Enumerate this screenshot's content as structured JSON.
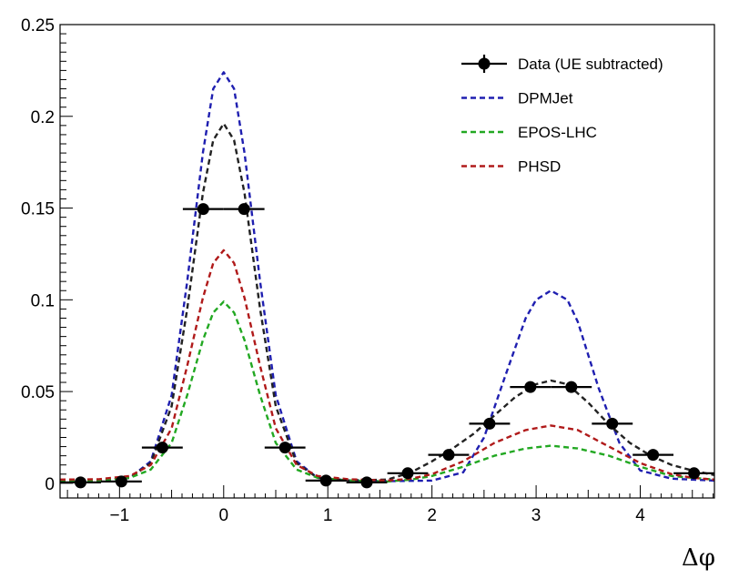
{
  "chart_data": {
    "type": "line",
    "xlabel": "Δφ",
    "ylabel": "",
    "xlim": [
      -1.571,
      4.712
    ],
    "ylim": [
      -0.008,
      0.25
    ],
    "grid": false,
    "legend_position": "top-right",
    "x_ticks": [
      {
        "value": -1,
        "label": "−1"
      },
      {
        "value": 0,
        "label": "0"
      },
      {
        "value": 1,
        "label": "1"
      },
      {
        "value": 2,
        "label": "2"
      },
      {
        "value": 3,
        "label": "3"
      },
      {
        "value": 4,
        "label": "4"
      }
    ],
    "y_ticks": [
      {
        "value": 0,
        "label": "0"
      },
      {
        "value": 0.05,
        "label": "0.05"
      },
      {
        "value": 0.1,
        "label": "0.1"
      },
      {
        "value": 0.15,
        "label": "0.15"
      },
      {
        "value": 0.2,
        "label": "0.2"
      },
      {
        "value": 0.25,
        "label": "0.25"
      }
    ],
    "data_points": {
      "name": "Data (UE subtracted)",
      "color": "#000000",
      "bin_half_width": 0.196,
      "x": [
        -1.374,
        -0.982,
        -0.589,
        -0.196,
        0.196,
        0.589,
        0.982,
        1.374,
        1.767,
        2.16,
        2.553,
        2.945,
        3.338,
        3.731,
        4.123,
        4.516
      ],
      "y": [
        0.0005,
        0.001,
        0.0195,
        0.1495,
        0.1495,
        0.0195,
        0.0015,
        0.0005,
        0.0055,
        0.0155,
        0.0325,
        0.0525,
        0.0525,
        0.0325,
        0.0155,
        0.0055
      ]
    },
    "series": [
      {
        "name": "DPMJet",
        "color": "#1f1fb0",
        "dash": "6,4",
        "x": [
          -1.571,
          -1.2,
          -0.9,
          -0.7,
          -0.5,
          -0.35,
          -0.2,
          -0.1,
          0,
          0.1,
          0.2,
          0.35,
          0.5,
          0.7,
          0.9,
          1.2,
          1.571,
          2.0,
          2.3,
          2.5,
          2.7,
          2.9,
          3.0,
          3.142,
          3.3,
          3.4,
          3.6,
          3.8,
          4.0,
          4.3,
          4.712
        ],
        "y": [
          0.0015,
          0.0016,
          0.003,
          0.012,
          0.048,
          0.11,
          0.18,
          0.215,
          0.224,
          0.215,
          0.18,
          0.11,
          0.048,
          0.012,
          0.003,
          0.0016,
          0.0012,
          0.0015,
          0.006,
          0.025,
          0.058,
          0.09,
          0.1,
          0.105,
          0.1,
          0.088,
          0.052,
          0.022,
          0.007,
          0.0025,
          0.0015
        ]
      },
      {
        "name": "",
        "color": "#222222",
        "dash": "6,4",
        "x": [
          -1.571,
          -1.2,
          -0.9,
          -0.7,
          -0.5,
          -0.35,
          -0.2,
          -0.1,
          0,
          0.1,
          0.2,
          0.35,
          0.5,
          0.7,
          0.9,
          1.2,
          1.571,
          1.8,
          2.0,
          2.2,
          2.4,
          2.6,
          2.8,
          3.0,
          3.142,
          3.3,
          3.5,
          3.7,
          3.9,
          4.1,
          4.3,
          4.5,
          4.712
        ],
        "y": [
          0.0015,
          0.0016,
          0.003,
          0.011,
          0.042,
          0.095,
          0.158,
          0.187,
          0.196,
          0.187,
          0.158,
          0.095,
          0.042,
          0.011,
          0.003,
          0.0016,
          0.002,
          0.006,
          0.012,
          0.019,
          0.027,
          0.037,
          0.047,
          0.054,
          0.056,
          0.054,
          0.044,
          0.032,
          0.022,
          0.015,
          0.01,
          0.007,
          0.0045
        ]
      },
      {
        "name": "EPOS-LHC",
        "color": "#22a822",
        "dash": "6,4",
        "x": [
          -1.571,
          -1.2,
          -0.9,
          -0.7,
          -0.5,
          -0.35,
          -0.2,
          -0.1,
          0,
          0.1,
          0.2,
          0.35,
          0.5,
          0.7,
          0.9,
          1.2,
          1.571,
          1.8,
          2.0,
          2.3,
          2.6,
          2.9,
          3.142,
          3.4,
          3.7,
          4.0,
          4.3,
          4.5,
          4.712
        ],
        "y": [
          0.0015,
          0.0016,
          0.003,
          0.0075,
          0.022,
          0.048,
          0.078,
          0.093,
          0.099,
          0.093,
          0.078,
          0.048,
          0.022,
          0.0075,
          0.003,
          0.0016,
          0.001,
          0.002,
          0.004,
          0.009,
          0.015,
          0.019,
          0.0205,
          0.019,
          0.015,
          0.009,
          0.004,
          0.003,
          0.002
        ]
      },
      {
        "name": "PHSD",
        "color": "#b01a1a",
        "dash": "6,4",
        "x": [
          -1.571,
          -1.2,
          -0.9,
          -0.7,
          -0.5,
          -0.35,
          -0.2,
          -0.1,
          0,
          0.1,
          0.2,
          0.35,
          0.5,
          0.7,
          0.9,
          1.2,
          1.571,
          1.8,
          2.0,
          2.3,
          2.6,
          2.9,
          3.142,
          3.4,
          3.7,
          4.0,
          4.3,
          4.5,
          4.712
        ],
        "y": [
          0.002,
          0.0022,
          0.004,
          0.01,
          0.03,
          0.064,
          0.101,
          0.12,
          0.127,
          0.12,
          0.101,
          0.064,
          0.03,
          0.01,
          0.004,
          0.0022,
          0.0015,
          0.0025,
          0.005,
          0.012,
          0.022,
          0.029,
          0.0315,
          0.029,
          0.02,
          0.011,
          0.005,
          0.003,
          0.002
        ]
      }
    ]
  }
}
